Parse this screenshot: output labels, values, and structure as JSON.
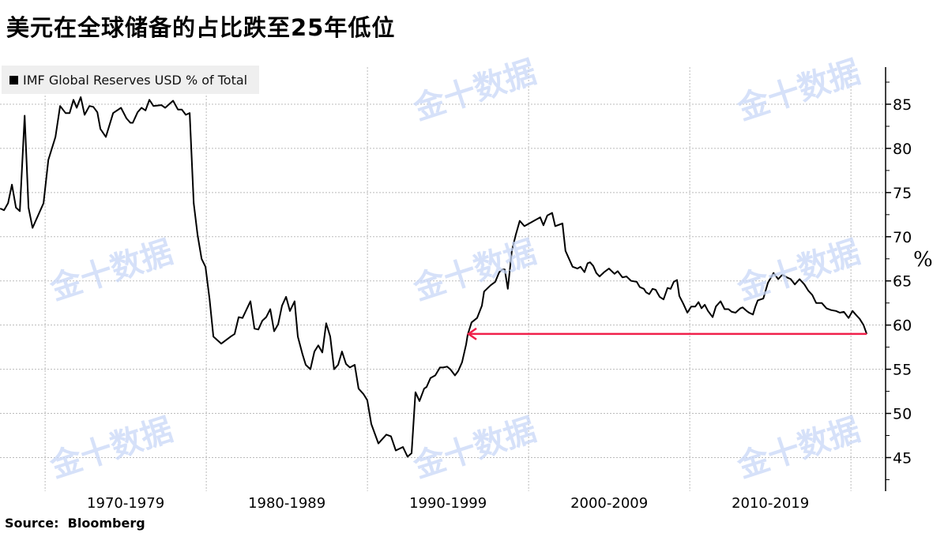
{
  "title": "美元在全球储备的占比跌至25年低位",
  "source": "Source:  Bloomberg",
  "watermark": "金十数据",
  "chart_data": {
    "type": "line",
    "title": "美元在全球储备的占比跌至25年低位",
    "ylabel": "%",
    "xlabel": "",
    "ylim": [
      41.2,
      89.2
    ],
    "xlim": [
      1967.2,
      2022.15
    ],
    "y_axis_position": "right",
    "yticks": [
      45,
      50,
      55,
      60,
      65,
      70,
      75,
      80,
      85
    ],
    "y_minor_step": 2.5,
    "x_gridlines": [
      1970,
      1980,
      1990,
      2000,
      2010,
      2020
    ],
    "x_tick_labels": [
      {
        "label": "1970-1979",
        "center": 1975
      },
      {
        "label": "1980-1989",
        "center": 1985
      },
      {
        "label": "1990-1999",
        "center": 1995
      },
      {
        "label": "2000-2009",
        "center": 2005
      },
      {
        "label": "2010-2019",
        "center": 2015
      }
    ],
    "grid": true,
    "legend": {
      "placement": "top-left",
      "entries": [
        "IMF Global Reserves USD % of Total"
      ]
    },
    "colors": {
      "series": "#000000",
      "annotation": "#f0204a",
      "grid": "#bbbbbb",
      "legend_bg": "#efefef"
    },
    "series": [
      {
        "name": "IMF Global Reserves USD % of Total",
        "x": [
          1967.21,
          1967.45,
          1967.7,
          1967.94,
          1968.19,
          1968.43,
          1968.73,
          1968.97,
          1969.22,
          1969.9,
          1970.2,
          1970.64,
          1970.93,
          1971.27,
          1971.52,
          1971.76,
          1971.96,
          1972.21,
          1972.45,
          1972.75,
          1972.99,
          1973.24,
          1973.43,
          1973.77,
          1974.22,
          1974.71,
          1975.05,
          1975.29,
          1975.44,
          1975.74,
          1975.98,
          1976.23,
          1976.47,
          1976.72,
          1977.21,
          1977.45,
          1977.94,
          1978.24,
          1978.48,
          1978.73,
          1978.97,
          1979.22,
          1979.46,
          1979.71,
          1979.95,
          1980.2,
          1980.44,
          1980.93,
          1981.52,
          1981.76,
          1982.01,
          1982.25,
          1982.74,
          1982.99,
          1983.23,
          1983.48,
          1983.72,
          1983.97,
          1984.21,
          1984.46,
          1984.7,
          1984.95,
          1985.19,
          1985.48,
          1985.68,
          1985.97,
          1986.17,
          1986.46,
          1986.71,
          1986.95,
          1987.2,
          1987.44,
          1987.69,
          1987.93,
          1988.18,
          1988.42,
          1988.67,
          1988.91,
          1989.21,
          1989.45,
          1989.75,
          1989.99,
          1990.24,
          1990.68,
          1991.17,
          1991.46,
          1991.76,
          1992.2,
          1992.49,
          1992.74,
          1992.98,
          1993.23,
          1993.52,
          1993.67,
          1993.91,
          1994.21,
          1994.5,
          1994.7,
          1994.94,
          1995.14,
          1995.43,
          1995.63,
          1995.87,
          1996.12,
          1996.22,
          1996.46,
          1996.8,
          1997.1,
          1997.24,
          1997.64,
          1997.93,
          1998.18,
          1998.37,
          1998.52,
          1998.71,
          1998.96,
          1999.2,
          1999.45,
          1999.74,
          2000.04,
          2000.43,
          2000.72,
          2000.92,
          2001.16,
          2001.46,
          2001.65,
          2002.1,
          2002.29,
          2002.73,
          2003.03,
          2003.22,
          2003.47,
          2003.66,
          2003.81,
          2004.01,
          2004.2,
          2004.4,
          2004.69,
          2004.99,
          2005.33,
          2005.53,
          2005.82,
          2006.07,
          2006.36,
          2006.71,
          2006.9,
          2007.15,
          2007.29,
          2007.49,
          2007.69,
          2007.88,
          2008.13,
          2008.37,
          2008.62,
          2008.81,
          2009.01,
          2009.21,
          2009.35,
          2009.6,
          2009.85,
          2010.09,
          2010.34,
          2010.54,
          2010.73,
          2010.93,
          2011.13,
          2011.42,
          2011.62,
          2011.91,
          2012.16,
          2012.4,
          2012.6,
          2012.84,
          2013.14,
          2013.28,
          2013.53,
          2013.68,
          2013.92,
          2014.07,
          2014.22,
          2014.56,
          2014.85,
          2015.2,
          2015.49,
          2015.74,
          2016.03,
          2016.27,
          2016.52,
          2016.81,
          2017.11,
          2017.35,
          2017.6,
          2017.84,
          2018.19,
          2018.48,
          2018.77,
          2019.07,
          2019.31,
          2019.56,
          2019.85,
          2020.1,
          2020.29,
          2020.54,
          2020.78,
          2020.98
        ],
        "values": [
          73.2,
          73.0,
          73.8,
          75.9,
          73.3,
          72.9,
          83.7,
          73.3,
          71.0,
          73.8,
          78.7,
          81.3,
          84.8,
          84.0,
          84.0,
          85.5,
          84.6,
          85.8,
          83.8,
          84.8,
          84.7,
          84.1,
          82.2,
          81.3,
          84.0,
          84.6,
          83.4,
          82.9,
          82.9,
          84.1,
          84.6,
          84.3,
          85.5,
          84.8,
          84.9,
          84.6,
          85.4,
          84.4,
          84.4,
          83.8,
          84.0,
          73.8,
          70.2,
          67.5,
          66.6,
          63.0,
          58.7,
          57.9,
          58.7,
          59.0,
          60.9,
          60.8,
          62.7,
          59.6,
          59.5,
          60.5,
          60.9,
          61.8,
          59.3,
          60.1,
          62.2,
          63.2,
          61.6,
          62.7,
          58.7,
          56.7,
          55.5,
          55.0,
          57.0,
          57.7,
          56.9,
          60.2,
          58.7,
          55.0,
          55.5,
          57.0,
          55.6,
          55.2,
          55.5,
          52.8,
          52.2,
          51.5,
          48.8,
          46.6,
          47.6,
          47.4,
          45.8,
          46.2,
          45.1,
          45.5,
          52.4,
          51.4,
          52.8,
          53.0,
          54.0,
          54.3,
          55.2,
          55.2,
          55.3,
          55.0,
          54.3,
          54.8,
          55.8,
          57.8,
          58.9,
          60.3,
          60.8,
          62.2,
          63.8,
          64.5,
          64.9,
          66.0,
          66.3,
          66.3,
          64.1,
          68.4,
          70.2,
          71.8,
          71.2,
          71.5,
          71.9,
          72.2,
          71.3,
          72.4,
          72.7,
          71.2,
          71.5,
          68.4,
          66.6,
          66.4,
          66.6,
          66.0,
          67.0,
          67.1,
          66.7,
          65.9,
          65.5,
          66.0,
          66.4,
          65.8,
          66.1,
          65.4,
          65.5,
          65.0,
          64.9,
          64.3,
          64.1,
          63.7,
          63.5,
          64.1,
          64.0,
          63.2,
          62.9,
          64.2,
          64.1,
          64.9,
          65.1,
          63.3,
          62.4,
          61.4,
          62.1,
          62.1,
          62.6,
          61.9,
          62.3,
          61.6,
          60.9,
          62.1,
          62.7,
          61.8,
          61.8,
          61.5,
          61.4,
          61.9,
          62.0,
          61.6,
          61.4,
          61.2,
          62.1,
          62.8,
          63.0,
          64.8,
          65.9,
          65.2,
          65.7,
          65.4,
          65.2,
          64.6,
          65.2,
          64.6,
          63.9,
          63.4,
          62.5,
          62.5,
          61.9,
          61.7,
          61.6,
          61.4,
          61.5,
          60.8,
          61.6,
          61.2,
          60.7,
          60.0,
          59.0
        ]
      }
    ],
    "annotations": [
      {
        "type": "arrow",
        "y": 59.0,
        "x_from": 2020.98,
        "x_to": 1996.22,
        "color": "#f0204a"
      }
    ]
  }
}
